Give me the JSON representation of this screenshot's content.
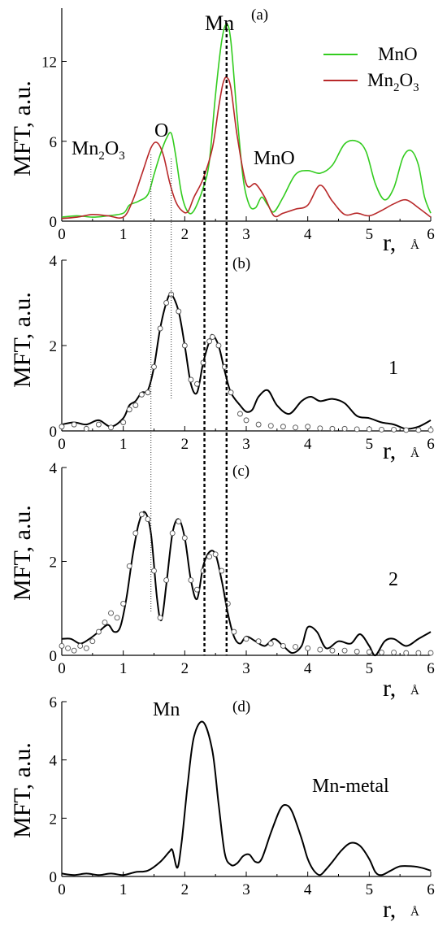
{
  "figure": {
    "ylabel": "MFT, a.u.",
    "xlabel": "r,",
    "xunit": "Å",
    "markers": {
      "thin_dotted_x": [
        1.45,
        1.78
      ],
      "thick_dashed_x": [
        2.32,
        2.68
      ]
    }
  },
  "chart_data": [
    {
      "panel": "(a)",
      "type": "line",
      "xlim": [
        0,
        6
      ],
      "ylim": [
        0,
        16
      ],
      "xticks": [
        "0",
        "1",
        "2",
        "3",
        "4",
        "5",
        "6"
      ],
      "yticks": [
        "0",
        "6",
        "12"
      ],
      "ytick_values": [
        0,
        6,
        12
      ],
      "legend": {
        "position": "top-right",
        "entries": [
          "MnO",
          "Mn2O3"
        ]
      },
      "annotations": {
        "mn": "Mn",
        "o": "O",
        "mno": "MnO",
        "mn2o3_base": "Mn",
        "mn2o3_sub1": "2",
        "mn2o3_mid": "O",
        "mn2o3_sub2": "3"
      },
      "series": [
        {
          "name": "MnO",
          "color": "#33cc1f",
          "x": [
            0,
            0.25,
            0.5,
            0.75,
            1.0,
            1.1,
            1.25,
            1.4,
            1.5,
            1.6,
            1.7,
            1.78,
            1.85,
            1.95,
            2.05,
            2.15,
            2.3,
            2.4,
            2.5,
            2.6,
            2.68,
            2.75,
            2.85,
            2.95,
            3.05,
            3.15,
            3.25,
            3.35,
            3.45,
            3.6,
            3.8,
            4.0,
            4.2,
            4.4,
            4.6,
            4.8,
            4.95,
            5.1,
            5.25,
            5.4,
            5.55,
            5.68,
            5.8,
            5.9,
            6.0
          ],
          "y": [
            0.3,
            0.4,
            0.3,
            0.4,
            0.6,
            1.2,
            1.5,
            2.0,
            3.5,
            5.0,
            6.2,
            6.6,
            5.0,
            2.0,
            0.7,
            0.8,
            2.5,
            4.5,
            9.5,
            13.5,
            14.8,
            13.5,
            8.0,
            3.2,
            1.2,
            1.0,
            1.8,
            1.2,
            0.7,
            1.8,
            3.5,
            3.8,
            3.6,
            4.2,
            5.8,
            6.0,
            5.2,
            2.8,
            1.6,
            2.5,
            4.8,
            5.3,
            4.2,
            1.8,
            0.6
          ]
        },
        {
          "name": "Mn2O3",
          "color": "#b8292a",
          "x": [
            0,
            0.25,
            0.5,
            0.75,
            1.0,
            1.15,
            1.3,
            1.45,
            1.55,
            1.65,
            1.75,
            1.85,
            1.95,
            2.05,
            2.15,
            2.3,
            2.45,
            2.55,
            2.62,
            2.68,
            2.75,
            2.85,
            3.0,
            3.15,
            3.3,
            3.45,
            3.6,
            3.8,
            4.0,
            4.2,
            4.4,
            4.6,
            4.8,
            5.0,
            5.2,
            5.4,
            5.6,
            5.8,
            6.0
          ],
          "y": [
            0.2,
            0.3,
            0.5,
            0.4,
            0.3,
            1.5,
            3.5,
            5.5,
            5.9,
            5.0,
            3.0,
            1.5,
            0.8,
            0.7,
            1.8,
            3.2,
            5.5,
            8.5,
            10.3,
            10.8,
            10.0,
            6.5,
            2.8,
            2.8,
            1.8,
            0.4,
            0.6,
            0.9,
            1.2,
            2.7,
            1.5,
            0.5,
            0.6,
            0.4,
            0.8,
            1.3,
            1.6,
            1.0,
            0.3
          ]
        }
      ]
    },
    {
      "panel": "(b)",
      "type": "line",
      "xlim": [
        0,
        6
      ],
      "ylim": [
        0,
        4
      ],
      "xticks": [
        "0",
        "1",
        "2",
        "3",
        "4",
        "5",
        "6"
      ],
      "yticks": [
        "0",
        "2",
        "4"
      ],
      "ytick_values": [
        0,
        2,
        4
      ],
      "label": "1",
      "series": [
        {
          "style": "solid",
          "x": [
            0,
            0.2,
            0.4,
            0.6,
            0.8,
            1.0,
            1.1,
            1.2,
            1.3,
            1.4,
            1.5,
            1.6,
            1.7,
            1.78,
            1.9,
            2.0,
            2.1,
            2.2,
            2.3,
            2.4,
            2.45,
            2.55,
            2.65,
            2.75,
            2.9,
            3.0,
            3.1,
            3.2,
            3.35,
            3.5,
            3.7,
            3.9,
            4.05,
            4.2,
            4.4,
            4.6,
            4.8,
            5.0,
            5.2,
            5.4,
            5.6,
            5.8,
            6.0
          ],
          "y": [
            0.15,
            0.2,
            0.15,
            0.25,
            0.1,
            0.3,
            0.6,
            0.7,
            0.9,
            0.95,
            1.5,
            2.4,
            3.0,
            3.2,
            2.8,
            2.0,
            1.1,
            0.9,
            1.6,
            2.1,
            2.25,
            2.0,
            1.4,
            0.9,
            0.6,
            0.45,
            0.5,
            0.8,
            0.95,
            0.6,
            0.4,
            0.7,
            0.8,
            0.7,
            0.75,
            0.65,
            0.35,
            0.3,
            0.2,
            0.15,
            0.05,
            0.1,
            0.25
          ]
        },
        {
          "style": "open-circles",
          "x": [
            0,
            0.2,
            0.4,
            0.6,
            0.8,
            1.0,
            1.1,
            1.2,
            1.3,
            1.4,
            1.5,
            1.6,
            1.7,
            1.78,
            1.9,
            2.0,
            2.1,
            2.2,
            2.3,
            2.4,
            2.45,
            2.55,
            2.65,
            2.75,
            2.9,
            3.0,
            3.2,
            3.4,
            3.6,
            3.8,
            4.0,
            4.2,
            4.4,
            4.6,
            4.8,
            5.0,
            5.2,
            5.4,
            5.6,
            5.8,
            6.0
          ],
          "y": [
            0.1,
            0.15,
            0.05,
            0.15,
            0.08,
            0.2,
            0.5,
            0.6,
            0.85,
            0.9,
            1.5,
            2.4,
            3.0,
            3.2,
            2.8,
            2.0,
            1.2,
            1.1,
            1.6,
            2.1,
            2.2,
            2.0,
            1.5,
            0.9,
            0.4,
            0.25,
            0.15,
            0.12,
            0.1,
            0.08,
            0.1,
            0.06,
            0.05,
            0.05,
            0.04,
            0.04,
            0.03,
            0.03,
            0.02,
            0.02,
            0.02
          ]
        }
      ]
    },
    {
      "panel": "(c)",
      "type": "line",
      "xlim": [
        0,
        6
      ],
      "ylim": [
        0,
        4
      ],
      "xticks": [
        "0",
        "1",
        "2",
        "3",
        "4",
        "5",
        "6"
      ],
      "yticks": [
        "0",
        "2",
        "4"
      ],
      "ytick_values": [
        0,
        2,
        4
      ],
      "label": "2",
      "series": [
        {
          "style": "solid",
          "x": [
            0,
            0.15,
            0.3,
            0.45,
            0.6,
            0.75,
            0.85,
            0.95,
            1.05,
            1.15,
            1.25,
            1.35,
            1.45,
            1.55,
            1.62,
            1.7,
            1.8,
            1.9,
            2.0,
            2.1,
            2.2,
            2.3,
            2.4,
            2.5,
            2.6,
            2.7,
            2.8,
            2.9,
            3.0,
            3.15,
            3.3,
            3.45,
            3.6,
            3.75,
            3.9,
            4.0,
            4.15,
            4.3,
            4.5,
            4.7,
            4.85,
            5.0,
            5.1,
            5.25,
            5.4,
            5.6,
            5.8,
            6.0
          ],
          "y": [
            0.35,
            0.35,
            0.25,
            0.35,
            0.5,
            0.65,
            0.5,
            0.6,
            1.2,
            2.1,
            2.8,
            3.05,
            2.6,
            1.2,
            0.75,
            1.5,
            2.6,
            2.9,
            2.5,
            1.6,
            1.2,
            1.9,
            2.2,
            2.15,
            1.6,
            0.9,
            0.4,
            0.25,
            0.4,
            0.3,
            0.2,
            0.35,
            0.2,
            0.05,
            0.2,
            0.6,
            0.5,
            0.15,
            0.3,
            0.25,
            0.45,
            0.2,
            0.0,
            0.3,
            0.35,
            0.2,
            0.35,
            0.5
          ]
        },
        {
          "style": "open-circles",
          "x": [
            0,
            0.1,
            0.2,
            0.3,
            0.4,
            0.5,
            0.6,
            0.7,
            0.8,
            0.9,
            1.0,
            1.1,
            1.2,
            1.3,
            1.4,
            1.5,
            1.6,
            1.7,
            1.8,
            1.9,
            2.0,
            2.1,
            2.2,
            2.3,
            2.4,
            2.5,
            2.6,
            2.7,
            2.8,
            3.0,
            3.2,
            3.4,
            3.6,
            3.8,
            4.0,
            4.2,
            4.4,
            4.6,
            4.8,
            5.0,
            5.2,
            5.4,
            5.6,
            5.8,
            6.0
          ],
          "y": [
            0.2,
            0.15,
            0.1,
            0.2,
            0.15,
            0.3,
            0.5,
            0.7,
            0.9,
            0.8,
            1.1,
            1.9,
            2.6,
            3.0,
            2.9,
            1.8,
            0.8,
            1.6,
            2.6,
            2.85,
            2.5,
            1.6,
            1.4,
            1.8,
            2.1,
            2.15,
            1.8,
            1.1,
            0.5,
            0.35,
            0.3,
            0.25,
            0.2,
            0.18,
            0.15,
            0.12,
            0.1,
            0.1,
            0.08,
            0.07,
            0.06,
            0.06,
            0.05,
            0.05,
            0.05
          ]
        }
      ]
    },
    {
      "panel": "(d)",
      "type": "line",
      "xlim": [
        0,
        6
      ],
      "ylim": [
        0,
        6
      ],
      "xticks": [
        "0",
        "1",
        "2",
        "3",
        "4",
        "5",
        "6"
      ],
      "yticks": [
        "0",
        "2",
        "4",
        "6"
      ],
      "ytick_values": [
        0,
        2,
        4,
        6
      ],
      "annotations": {
        "mn": "Mn",
        "mnmetal": "Mn-metal"
      },
      "series": [
        {
          "style": "solid",
          "x": [
            0,
            0.2,
            0.4,
            0.6,
            0.8,
            1.0,
            1.2,
            1.4,
            1.6,
            1.75,
            1.8,
            1.88,
            1.95,
            2.05,
            2.15,
            2.3,
            2.45,
            2.55,
            2.65,
            2.75,
            2.85,
            2.95,
            3.05,
            3.15,
            3.25,
            3.4,
            3.55,
            3.65,
            3.75,
            3.9,
            4.0,
            4.1,
            4.2,
            4.3,
            4.4,
            4.55,
            4.7,
            4.85,
            5.0,
            5.1,
            5.2,
            5.35,
            5.5,
            5.7,
            5.85,
            6.0
          ],
          "y": [
            0.1,
            0.05,
            0.1,
            0.05,
            0.1,
            0.05,
            0.15,
            0.2,
            0.5,
            0.85,
            0.9,
            0.3,
            1.2,
            3.2,
            4.8,
            5.3,
            4.3,
            2.5,
            0.8,
            0.4,
            0.45,
            0.7,
            0.75,
            0.5,
            0.6,
            1.5,
            2.3,
            2.45,
            2.2,
            1.3,
            0.6,
            0.2,
            0.05,
            0.25,
            0.5,
            0.9,
            1.15,
            1.05,
            0.6,
            0.15,
            0.05,
            0.2,
            0.35,
            0.35,
            0.3,
            0.2
          ]
        }
      ]
    }
  ]
}
